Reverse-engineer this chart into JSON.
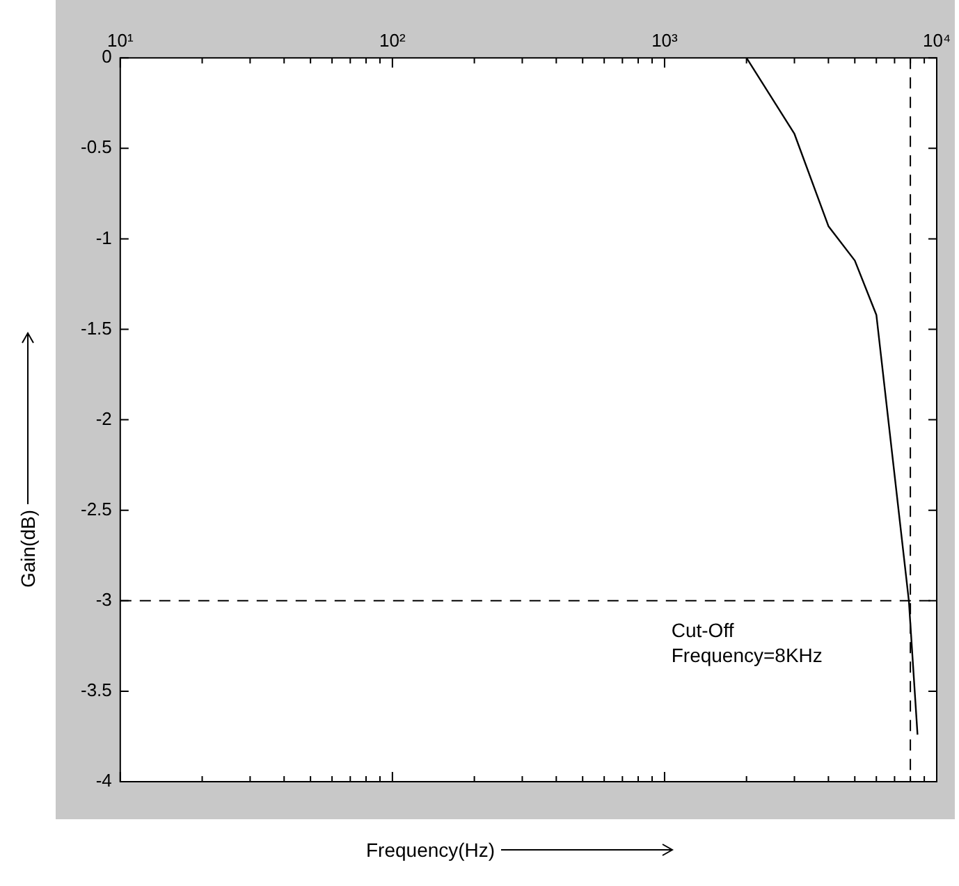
{
  "chart_data": {
    "type": "line",
    "xlabel": "Frequency(Hz)",
    "ylabel": "Gain(dB)",
    "x": [
      2000,
      3000,
      4000,
      5000,
      6000,
      7900,
      8500
    ],
    "series": [
      {
        "color": "#000000",
        "values": [
          0,
          -0.42,
          -0.93,
          -1.12,
          -1.42,
          -3.0,
          -3.74
        ]
      }
    ],
    "log": "x",
    "xlim": [
      10,
      10000
    ],
    "xticks": [
      {
        "value": 10,
        "label": "10¹"
      },
      {
        "value": 20,
        "label": null
      },
      {
        "value": 30,
        "label": null
      },
      {
        "value": 40,
        "label": null
      },
      {
        "value": 50,
        "label": null
      },
      {
        "value": 60,
        "label": null
      },
      {
        "value": 70,
        "label": null
      },
      {
        "value": 80,
        "label": null
      },
      {
        "value": 90,
        "label": null
      },
      {
        "value": 100,
        "label": "10²"
      },
      {
        "value": 200,
        "label": null
      },
      {
        "value": 300,
        "label": null
      },
      {
        "value": 400,
        "label": null
      },
      {
        "value": 500,
        "label": null
      },
      {
        "value": 600,
        "label": null
      },
      {
        "value": 700,
        "label": null
      },
      {
        "value": 800,
        "label": null
      },
      {
        "value": 900,
        "label": null
      },
      {
        "value": 1000,
        "label": "10³"
      },
      {
        "value": 2000,
        "label": null
      },
      {
        "value": 3000,
        "label": null
      },
      {
        "value": 4000,
        "label": null
      },
      {
        "value": 5000,
        "label": null
      },
      {
        "value": 6000,
        "label": null
      },
      {
        "value": 7000,
        "label": null
      },
      {
        "value": 8000,
        "label": null
      },
      {
        "value": 9000,
        "label": null
      },
      {
        "value": 10000,
        "label": "10⁴"
      }
    ],
    "ylim": [
      -4,
      0
    ],
    "yticks": [
      -4,
      -3.5,
      -3,
      -2.5,
      -2,
      -1.5,
      -1,
      -0.5,
      0
    ],
    "ref_lines": [
      {
        "axis": "x",
        "value": 8000,
        "color": "#000000",
        "line_style": "dashed"
      },
      {
        "axis": "y",
        "value": -3,
        "color": "#000000",
        "line_style": "dashed"
      }
    ],
    "annotations": [
      "Cut-Off\nFrequency=8KHz"
    ],
    "grid": false,
    "legend": false,
    "marker": "none",
    "line_style": "solid"
  }
}
